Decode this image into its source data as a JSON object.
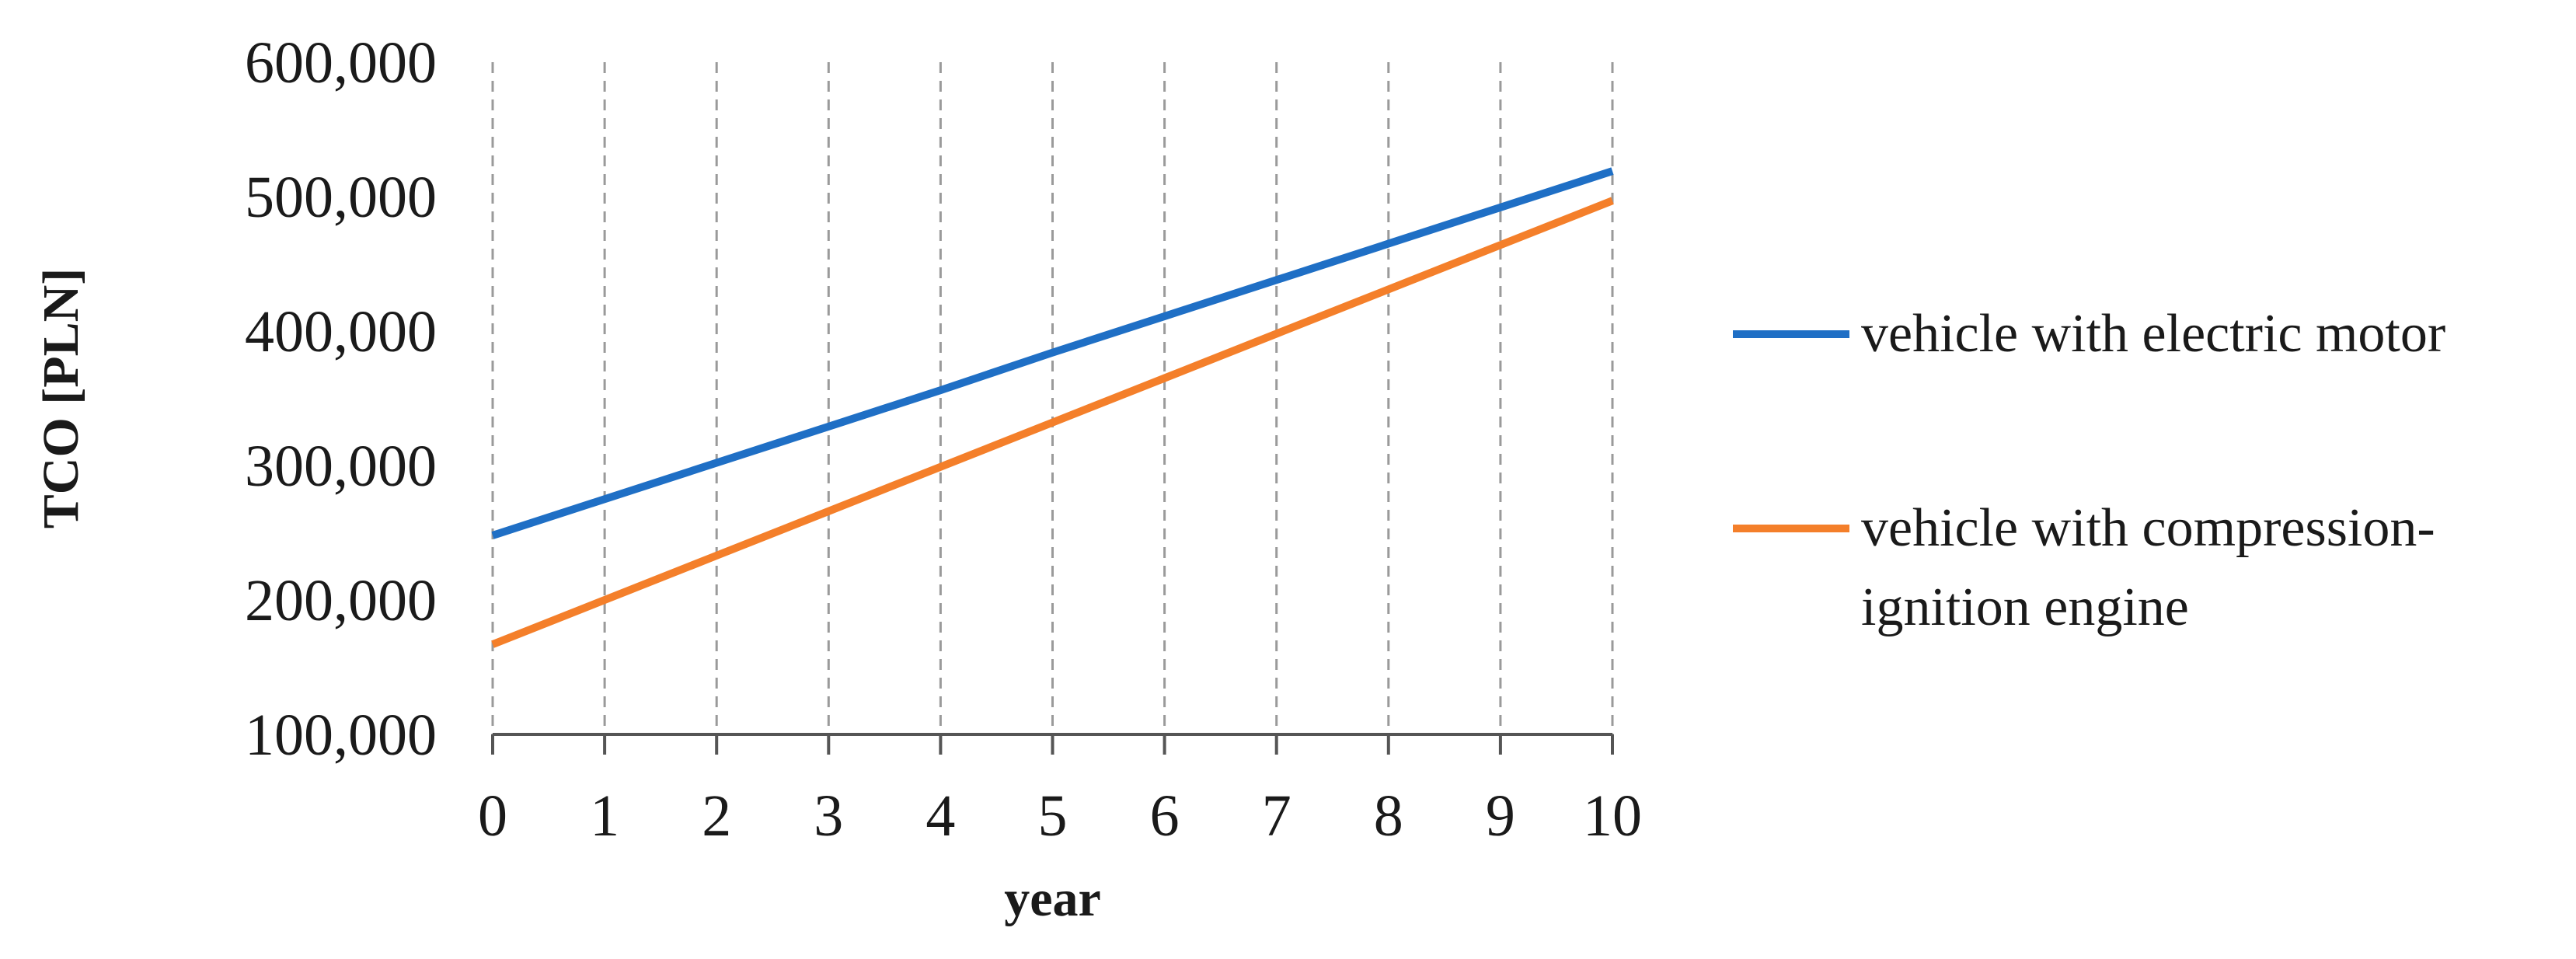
{
  "chart_data": {
    "type": "line",
    "xlabel": "year",
    "ylabel": "TCO [PLN]",
    "x": [
      0,
      1,
      2,
      3,
      4,
      5,
      6,
      7,
      8,
      9,
      10
    ],
    "xlim": [
      0,
      10
    ],
    "ylim": [
      100000,
      600000
    ],
    "yticks": [
      100000,
      200000,
      300000,
      400000,
      500000,
      600000
    ],
    "ytick_labels": [
      "100,000",
      "200,000",
      "300,000",
      "400,000",
      "500,000",
      "600,000"
    ],
    "xtick_labels": [
      "0",
      "1",
      "2",
      "3",
      "4",
      "5",
      "6",
      "7",
      "8",
      "9",
      "10"
    ],
    "grid": "vertical dashed",
    "legend_position": "right",
    "series": [
      {
        "name": "vehicle with electric motor",
        "legend_lines": [
          "vehicle with electric motor"
        ],
        "color": "#1f6fc5",
        "values": [
          248000,
          275000,
          302000,
          329000,
          356000,
          384000,
          411000,
          438000,
          465000,
          492000,
          519000
        ]
      },
      {
        "name": "vehicle with compression-ignition engine",
        "legend_lines": [
          "vehicle with compression-",
          "ignition engine"
        ],
        "color": "#f47f2a",
        "values": [
          167000,
          200000,
          233000,
          266000,
          299000,
          332000,
          365000,
          398000,
          431000,
          464000,
          497000
        ]
      }
    ]
  }
}
